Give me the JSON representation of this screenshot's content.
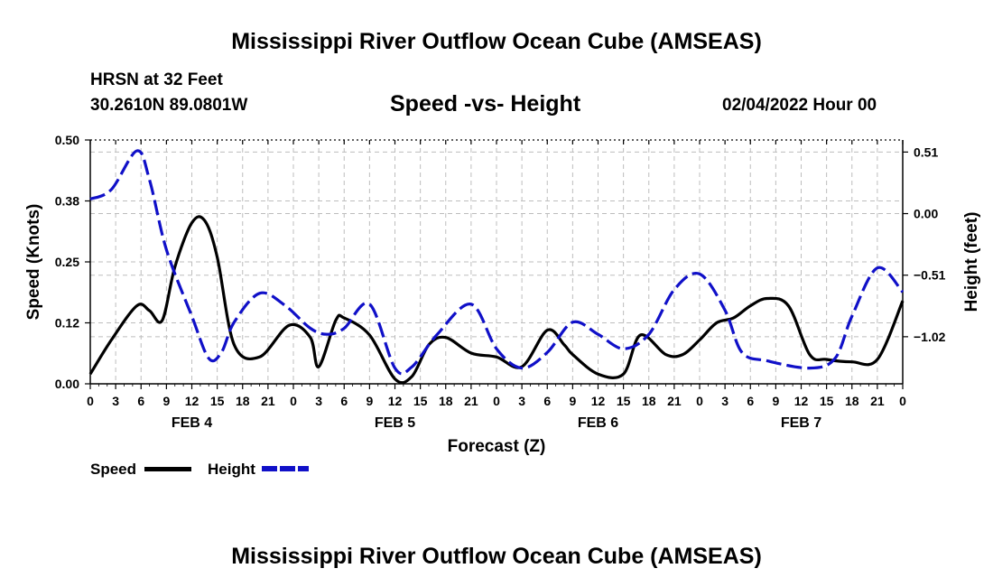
{
  "header": {
    "title": "Mississippi River Outflow Ocean Cube (AMSEAS)",
    "station": "HRSN at 32 Feet",
    "coords": "30.2610N  89.0801W",
    "subtitle": "Speed -vs- Height",
    "date": "02/04/2022 Hour 00"
  },
  "footer": {
    "title": "Mississippi River Outflow Ocean Cube (AMSEAS)"
  },
  "legend": {
    "speed_label": "Speed",
    "height_label": "Height"
  },
  "colors": {
    "speed": "#000000",
    "height": "#1010c8",
    "grid": "#bdbdbd"
  },
  "chart_data": {
    "type": "line",
    "xlabel": "Forecast (Z)",
    "ylabel": "Speed (Knots)",
    "y2label": "Height (feet)",
    "xlim": [
      0,
      96
    ],
    "ylim": [
      0,
      0.5
    ],
    "y2lim": [
      -1.41,
      0.61
    ],
    "y_ticks": [
      "0.00",
      "0.12",
      "0.25",
      "0.38",
      "0.50"
    ],
    "y_tick_values": [
      0,
      0.125,
      0.25,
      0.375,
      0.5
    ],
    "y2_ticks": [
      "0.51",
      "0.00",
      "−0.51",
      "−1.02"
    ],
    "y2_tick_values": [
      0.51,
      0,
      -0.51,
      -1.02
    ],
    "x_ticks": [
      "0",
      "3",
      "6",
      "9",
      "12",
      "15",
      "18",
      "21",
      "0",
      "3",
      "6",
      "9",
      "12",
      "15",
      "18",
      "21",
      "0",
      "3",
      "6",
      "9",
      "12",
      "15",
      "18",
      "21",
      "0",
      "3",
      "6",
      "9",
      "12",
      "15",
      "18",
      "21",
      "0"
    ],
    "day_labels": [
      {
        "label": "FEB 4",
        "x": 12
      },
      {
        "label": "FEB 5",
        "x": 36
      },
      {
        "label": "FEB 6",
        "x": 60
      },
      {
        "label": "FEB 7",
        "x": 84
      }
    ],
    "series": [
      {
        "name": "Speed",
        "axis": "left",
        "x": [
          0,
          2.5,
          5.5,
          7,
          8.5,
          10,
          12,
          13.5,
          15,
          17,
          20,
          23.5,
          26,
          27,
          29,
          30,
          33,
          36,
          38,
          40,
          42,
          45,
          48,
          51,
          54,
          56,
          57,
          60,
          63,
          65,
          68,
          70,
          72,
          74,
          76,
          78,
          80,
          82.5,
          85,
          87,
          90,
          93,
          96
        ],
        "values": [
          0.02,
          0.09,
          0.16,
          0.15,
          0.13,
          0.24,
          0.33,
          0.335,
          0.26,
          0.08,
          0.055,
          0.12,
          0.095,
          0.035,
          0.13,
          0.135,
          0.1,
          0.01,
          0.015,
          0.08,
          0.095,
          0.063,
          0.055,
          0.035,
          0.11,
          0.08,
          0.06,
          0.02,
          0.02,
          0.1,
          0.06,
          0.06,
          0.09,
          0.125,
          0.135,
          0.16,
          0.175,
          0.16,
          0.06,
          0.05,
          0.045,
          0.05,
          0.17
        ]
      },
      {
        "name": "Height",
        "axis": "right",
        "x": [
          0,
          2.5,
          5.5,
          7,
          9,
          12,
          14,
          15.5,
          17,
          20,
          23,
          26,
          28,
          30,
          33,
          36,
          38,
          41,
          45,
          48,
          51,
          54,
          57,
          60,
          63,
          66,
          69,
          72,
          75,
          77,
          80,
          85,
          88,
          90,
          93,
          96
        ],
        "values": [
          0.12,
          0.2,
          0.52,
          0.28,
          -0.3,
          -0.85,
          -1.2,
          -1.15,
          -0.9,
          -0.66,
          -0.76,
          -0.95,
          -1.0,
          -0.95,
          -0.75,
          -1.28,
          -1.27,
          -1.0,
          -0.75,
          -1.12,
          -1.28,
          -1.15,
          -0.9,
          -1.0,
          -1.12,
          -1.0,
          -0.63,
          -0.5,
          -0.8,
          -1.15,
          -1.22,
          -1.28,
          -1.2,
          -0.85,
          -0.45,
          -0.65
        ]
      }
    ]
  }
}
